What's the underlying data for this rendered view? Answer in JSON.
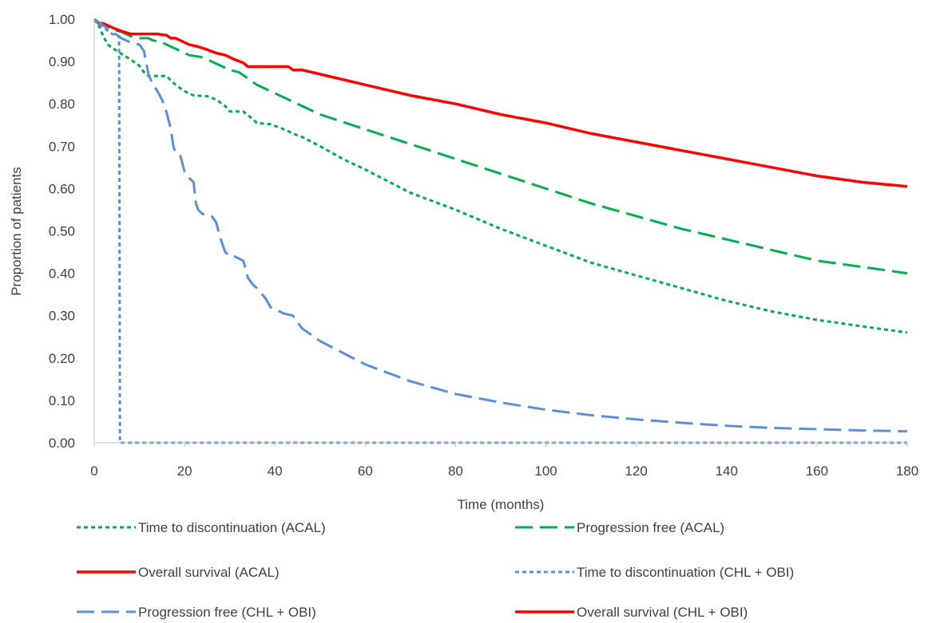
{
  "chart_data": {
    "type": "line",
    "title": "",
    "xlabel": "Time (months)",
    "ylabel": "Proportion  of patients",
    "xlim": [
      0,
      180
    ],
    "ylim": [
      0,
      1
    ],
    "x_ticks": [
      0,
      20,
      40,
      60,
      80,
      100,
      120,
      140,
      160,
      180
    ],
    "x_tick_labels": [
      "0",
      "20",
      "40",
      "60",
      "80",
      "100",
      "120",
      "140",
      "160",
      "180"
    ],
    "y_ticks": [
      0,
      0.1,
      0.2,
      0.3,
      0.4,
      0.5,
      0.6,
      0.7,
      0.8,
      0.9,
      1.0
    ],
    "y_tick_labels": [
      "0.00",
      "0.10",
      "0.20",
      "0.30",
      "0.40",
      "0.50",
      "0.60",
      "0.70",
      "0.80",
      "0.90",
      "1.00"
    ],
    "grid": false,
    "legend_position": "bottom",
    "series": [
      {
        "name": "Time to discontinuation (ACAL)",
        "color": "#00b050",
        "dash": "short-dash",
        "points": [
          [
            0,
            1.0
          ],
          [
            1,
            0.985
          ],
          [
            2,
            0.96
          ],
          [
            3,
            0.94
          ],
          [
            5,
            0.925
          ],
          [
            8,
            0.905
          ],
          [
            10,
            0.89
          ],
          [
            11,
            0.875
          ],
          [
            12,
            0.866
          ],
          [
            16,
            0.866
          ],
          [
            17,
            0.855
          ],
          [
            18,
            0.845
          ],
          [
            20,
            0.83
          ],
          [
            22,
            0.82
          ],
          [
            25,
            0.818
          ],
          [
            27,
            0.81
          ],
          [
            29,
            0.795
          ],
          [
            30,
            0.782
          ],
          [
            33,
            0.782
          ],
          [
            35,
            0.765
          ],
          [
            36,
            0.755
          ],
          [
            39,
            0.752
          ],
          [
            42,
            0.74
          ],
          [
            44,
            0.73
          ],
          [
            46,
            0.722
          ],
          [
            50,
            0.7
          ],
          [
            55,
            0.67
          ],
          [
            60,
            0.645
          ],
          [
            70,
            0.59
          ],
          [
            80,
            0.55
          ],
          [
            90,
            0.505
          ],
          [
            100,
            0.465
          ],
          [
            110,
            0.425
          ],
          [
            120,
            0.395
          ],
          [
            130,
            0.365
          ],
          [
            140,
            0.335
          ],
          [
            150,
            0.31
          ],
          [
            160,
            0.29
          ],
          [
            170,
            0.275
          ],
          [
            180,
            0.26
          ]
        ]
      },
      {
        "name": "Progression free (ACAL)",
        "color": "#00b050",
        "dash": "long-dash",
        "points": [
          [
            0,
            1.0
          ],
          [
            2,
            0.985
          ],
          [
            4,
            0.975
          ],
          [
            6,
            0.97
          ],
          [
            8,
            0.96
          ],
          [
            10,
            0.955
          ],
          [
            12,
            0.955
          ],
          [
            13,
            0.95
          ],
          [
            15,
            0.945
          ],
          [
            17,
            0.935
          ],
          [
            19,
            0.925
          ],
          [
            21,
            0.915
          ],
          [
            24,
            0.91
          ],
          [
            26,
            0.9
          ],
          [
            28,
            0.89
          ],
          [
            30,
            0.88
          ],
          [
            32,
            0.875
          ],
          [
            34,
            0.86
          ],
          [
            36,
            0.845
          ],
          [
            38,
            0.835
          ],
          [
            40,
            0.825
          ],
          [
            42,
            0.815
          ],
          [
            44,
            0.805
          ],
          [
            46,
            0.795
          ],
          [
            50,
            0.775
          ],
          [
            60,
            0.74
          ],
          [
            70,
            0.705
          ],
          [
            80,
            0.67
          ],
          [
            90,
            0.635
          ],
          [
            100,
            0.6
          ],
          [
            110,
            0.565
          ],
          [
            120,
            0.535
          ],
          [
            130,
            0.505
          ],
          [
            140,
            0.48
          ],
          [
            150,
            0.455
          ],
          [
            160,
            0.43
          ],
          [
            170,
            0.415
          ],
          [
            180,
            0.4
          ]
        ]
      },
      {
        "name": "Overall survival (ACAL)",
        "color": "#ff0000",
        "dash": "solid",
        "points": [
          [
            0,
            1.0
          ],
          [
            1,
            0.99
          ],
          [
            2,
            0.99
          ],
          [
            4,
            0.98
          ],
          [
            6,
            0.972
          ],
          [
            8,
            0.965
          ],
          [
            14,
            0.965
          ],
          [
            16,
            0.962
          ],
          [
            17,
            0.955
          ],
          [
            18,
            0.955
          ],
          [
            19,
            0.95
          ],
          [
            20,
            0.945
          ],
          [
            21,
            0.94
          ],
          [
            23,
            0.935
          ],
          [
            25,
            0.928
          ],
          [
            27,
            0.92
          ],
          [
            29,
            0.915
          ],
          [
            31,
            0.905
          ],
          [
            33,
            0.897
          ],
          [
            34,
            0.888
          ],
          [
            43,
            0.888
          ],
          [
            44,
            0.88
          ],
          [
            46,
            0.88
          ],
          [
            50,
            0.87
          ],
          [
            60,
            0.845
          ],
          [
            70,
            0.82
          ],
          [
            80,
            0.8
          ],
          [
            90,
            0.775
          ],
          [
            100,
            0.755
          ],
          [
            110,
            0.73
          ],
          [
            120,
            0.71
          ],
          [
            130,
            0.69
          ],
          [
            140,
            0.67
          ],
          [
            150,
            0.65
          ],
          [
            160,
            0.63
          ],
          [
            170,
            0.615
          ],
          [
            180,
            0.605
          ]
        ]
      },
      {
        "name": "Time to discontinuation (CHL + OBI)",
        "color": "#5b8fd8",
        "dash": "short-dash",
        "points": [
          [
            0,
            1.0
          ],
          [
            2,
            0.98
          ],
          [
            4,
            0.965
          ],
          [
            5.5,
            0.96
          ],
          [
            5.7,
            0.0
          ],
          [
            180,
            0.0
          ]
        ]
      },
      {
        "name": "Progression free (CHL + OBI)",
        "color": "#5b8fd8",
        "dash": "long-dash",
        "points": [
          [
            0,
            1.0
          ],
          [
            2,
            0.985
          ],
          [
            4,
            0.97
          ],
          [
            6,
            0.955
          ],
          [
            8,
            0.945
          ],
          [
            10,
            0.94
          ],
          [
            11,
            0.925
          ],
          [
            12,
            0.87
          ],
          [
            13,
            0.845
          ],
          [
            14,
            0.83
          ],
          [
            15,
            0.81
          ],
          [
            16,
            0.78
          ],
          [
            17,
            0.74
          ],
          [
            17.5,
            0.7
          ],
          [
            18,
            0.685
          ],
          [
            19,
            0.68
          ],
          [
            20,
            0.64
          ],
          [
            21,
            0.625
          ],
          [
            22,
            0.615
          ],
          [
            22.5,
            0.565
          ],
          [
            23,
            0.55
          ],
          [
            24,
            0.54
          ],
          [
            26,
            0.535
          ],
          [
            27,
            0.52
          ],
          [
            27.5,
            0.5
          ],
          [
            28,
            0.48
          ],
          [
            29,
            0.45
          ],
          [
            30,
            0.44
          ],
          [
            31,
            0.44
          ],
          [
            33,
            0.43
          ],
          [
            34,
            0.39
          ],
          [
            35,
            0.375
          ],
          [
            36,
            0.365
          ],
          [
            38,
            0.34
          ],
          [
            39,
            0.32
          ],
          [
            40,
            0.315
          ],
          [
            42,
            0.305
          ],
          [
            44,
            0.3
          ],
          [
            46,
            0.27
          ],
          [
            50,
            0.24
          ],
          [
            60,
            0.185
          ],
          [
            70,
            0.145
          ],
          [
            80,
            0.115
          ],
          [
            90,
            0.095
          ],
          [
            100,
            0.078
          ],
          [
            110,
            0.065
          ],
          [
            120,
            0.055
          ],
          [
            130,
            0.047
          ],
          [
            140,
            0.04
          ],
          [
            150,
            0.035
          ],
          [
            160,
            0.032
          ],
          [
            170,
            0.029
          ],
          [
            180,
            0.027
          ]
        ]
      },
      {
        "name": "Overall survival (CHL + OBI)",
        "color": "#ff0000",
        "dash": "solid",
        "points": []
      }
    ]
  }
}
